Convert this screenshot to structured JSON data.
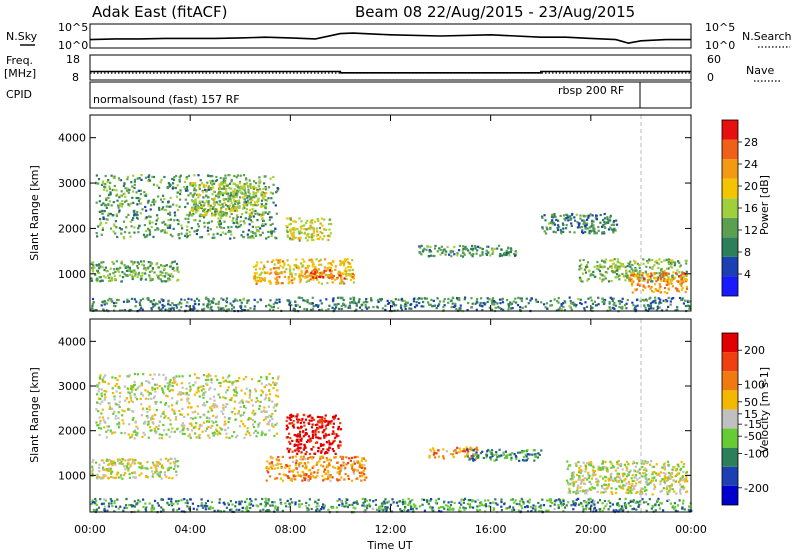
{
  "header": {
    "radar": "Adak East (fitACF)",
    "beam": "Beam 08 22/Aug/2015 - 23/Aug/2015"
  },
  "labels": {
    "nsky": "N.Sky",
    "freq_line1": "Freq.",
    "freq_line2": "[MHz]",
    "cpid": "CPID",
    "nsearch": "N.Search",
    "nave": "Nave"
  },
  "chart_data": [
    {
      "type": "line",
      "panel": "noise",
      "series": [
        {
          "name": "N.Sky",
          "style": "solid"
        },
        {
          "name": "N.Search",
          "style": "dotted"
        }
      ],
      "y_ticks_left": [
        "10^5",
        "10^0"
      ],
      "y_ticks_right": [
        "10^5",
        "10^0"
      ],
      "x": [
        0,
        1,
        2,
        3,
        4,
        5,
        6,
        7,
        8,
        9,
        10,
        10.5,
        12,
        14,
        16,
        18,
        19,
        20,
        21,
        21.5,
        22,
        23,
        24
      ],
      "nsky": [
        0.35,
        0.38,
        0.38,
        0.4,
        0.4,
        0.4,
        0.42,
        0.45,
        0.42,
        0.38,
        0.6,
        0.62,
        0.55,
        0.5,
        0.55,
        0.45,
        0.45,
        0.4,
        0.35,
        0.2,
        0.3,
        0.35,
        0.35
      ]
    },
    {
      "type": "line",
      "panel": "frequency",
      "y_ticks_left": [
        "18",
        "8"
      ],
      "y_ticks_right": [
        "60",
        "0"
      ],
      "freq_segments": [
        {
          "x0": 0,
          "x1": 10,
          "value": 11.4
        },
        {
          "x0": 10,
          "x1": 18,
          "value": 10.9
        },
        {
          "x0": 18,
          "x1": 24,
          "value": 11.4
        }
      ],
      "nave": [
        0.5,
        0.5,
        0.5
      ]
    },
    {
      "type": "table",
      "panel": "cpid",
      "segments": [
        {
          "start": 0,
          "label": "normalsound (fast) 157 RF"
        },
        {
          "start": 21.8,
          "label": "rbsp 200 RF"
        }
      ]
    },
    {
      "type": "heatmap",
      "panel": "power",
      "ylabel": "Slant Range [km]",
      "y_ticks": [
        1000,
        2000,
        3000,
        4000
      ],
      "ylim": [
        180,
        4500
      ],
      "colorbar": {
        "label": "Power [dB]",
        "ticks": [
          4,
          8,
          12,
          16,
          20,
          24,
          28
        ],
        "range": [
          0,
          32
        ]
      },
      "patches": [
        {
          "x0": 0.2,
          "x1": 7.5,
          "y0": 1800,
          "y1": 3200,
          "level": 0.35
        },
        {
          "x0": 4.0,
          "x1": 7.0,
          "y0": 2300,
          "y1": 3050,
          "level": 0.5
        },
        {
          "x0": 0,
          "x1": 3.5,
          "y0": 850,
          "y1": 1300,
          "level": 0.4
        },
        {
          "x0": 6.5,
          "x1": 10.5,
          "y0": 800,
          "y1": 1350,
          "level": 0.65
        },
        {
          "x0": 8.5,
          "x1": 10.2,
          "y0": 900,
          "y1": 1100,
          "level": 0.8
        },
        {
          "x0": 7.8,
          "x1": 9.6,
          "y0": 1750,
          "y1": 2250,
          "level": 0.55
        },
        {
          "x0": 13.0,
          "x1": 17.0,
          "y0": 1400,
          "y1": 1650,
          "level": 0.35
        },
        {
          "x0": 18.0,
          "x1": 21.0,
          "y0": 1900,
          "y1": 2350,
          "level": 0.3
        },
        {
          "x0": 19.5,
          "x1": 23.8,
          "y0": 850,
          "y1": 1350,
          "level": 0.45
        },
        {
          "x0": 21.5,
          "x1": 23.8,
          "y0": 600,
          "y1": 1050,
          "level": 0.75
        },
        {
          "x0": 0,
          "x1": 24,
          "y0": 200,
          "y1": 500,
          "level": 0.3
        }
      ]
    },
    {
      "type": "heatmap",
      "panel": "velocity",
      "ylabel": "Slant Range [km]",
      "xlabel": "Time UT",
      "x_ticks": [
        "00:00",
        "04:00",
        "08:00",
        "12:00",
        "16:00",
        "20:00",
        "00:00"
      ],
      "y_ticks": [
        1000,
        2000,
        3000,
        4000
      ],
      "ylim": [
        180,
        4500
      ],
      "colorbar": {
        "label": "Velocity [m s-1]",
        "ticks": [
          200,
          100,
          50,
          15,
          -15,
          -50,
          -100,
          -200
        ],
        "range": [
          -250,
          250
        ]
      },
      "patches": [
        {
          "x0": 0.2,
          "x1": 7.5,
          "y0": 1850,
          "y1": 3300,
          "level": 0.5
        },
        {
          "x0": 0,
          "x1": 3.5,
          "y0": 950,
          "y1": 1400,
          "level": 0.5
        },
        {
          "x0": 7.8,
          "x1": 10.0,
          "y0": 1500,
          "y1": 2400,
          "level": 0.95
        },
        {
          "x0": 7.0,
          "x1": 11.0,
          "y0": 900,
          "y1": 1450,
          "level": 0.68
        },
        {
          "x0": 13.5,
          "x1": 15.5,
          "y0": 1400,
          "y1": 1650,
          "level": 0.68
        },
        {
          "x0": 15.0,
          "x1": 18.0,
          "y0": 1350,
          "y1": 1600,
          "level": 0.3
        },
        {
          "x0": 19.0,
          "x1": 23.8,
          "y0": 600,
          "y1": 1350,
          "level": 0.5
        },
        {
          "x0": 0,
          "x1": 24,
          "y0": 200,
          "y1": 500,
          "level": 0.3
        }
      ]
    }
  ]
}
